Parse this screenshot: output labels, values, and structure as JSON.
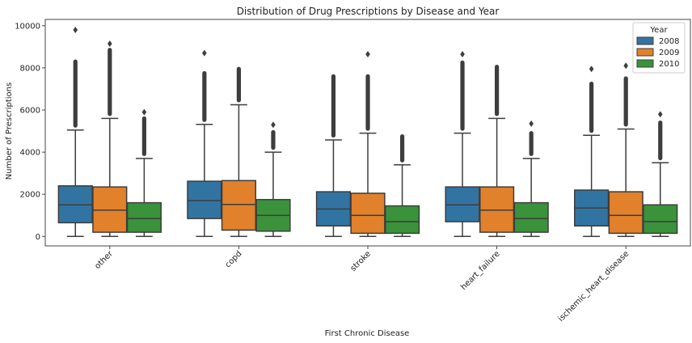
{
  "chart_data": {
    "type": "box",
    "title": "Distribution of Drug Prescriptions by Disease and Year",
    "xlabel": "First Chronic Disease",
    "ylabel": "Number of Prescriptions",
    "ylim": [
      -450,
      10300
    ],
    "yticks": [
      0,
      2000,
      4000,
      6000,
      8000,
      10000
    ],
    "ytick_labels": [
      "0",
      "2000",
      "4000",
      "6000",
      "8000",
      "10000"
    ],
    "categories": [
      "other",
      "copd",
      "stroke",
      "heart_failure",
      "ischemic_heart_disease"
    ],
    "legend": {
      "title": "Year",
      "position": "top-right"
    },
    "series": [
      {
        "name": "2008",
        "color": "#3274a1",
        "boxes": [
          {
            "min": 0,
            "q1": 650,
            "median": 1500,
            "q3": 2400,
            "max": 5050,
            "outlier_top": 8400,
            "outlier_max": 9800
          },
          {
            "min": 0,
            "q1": 850,
            "median": 1700,
            "q3": 2620,
            "max": 5320,
            "outlier_top": 7850,
            "outlier_max": 8700
          },
          {
            "min": 0,
            "q1": 500,
            "median": 1300,
            "q3": 2120,
            "max": 4580,
            "outlier_top": 7700,
            "outlier_max": 7700
          },
          {
            "min": 0,
            "q1": 700,
            "median": 1500,
            "q3": 2350,
            "max": 4900,
            "outlier_top": 8350,
            "outlier_max": 8650
          },
          {
            "min": 0,
            "q1": 500,
            "median": 1350,
            "q3": 2200,
            "max": 4800,
            "outlier_top": 7350,
            "outlier_max": 7950
          }
        ]
      },
      {
        "name": "2009",
        "color": "#e1812c",
        "boxes": [
          {
            "min": 0,
            "q1": 200,
            "median": 1250,
            "q3": 2350,
            "max": 5600,
            "outlier_top": 8950,
            "outlier_max": 9150
          },
          {
            "min": 0,
            "q1": 300,
            "median": 1520,
            "q3": 2650,
            "max": 6250,
            "outlier_top": 8050,
            "outlier_max": 8050
          },
          {
            "min": 0,
            "q1": 150,
            "median": 1000,
            "q3": 2050,
            "max": 4900,
            "outlier_top": 7700,
            "outlier_max": 8650
          },
          {
            "min": 0,
            "q1": 200,
            "median": 1250,
            "q3": 2350,
            "max": 5600,
            "outlier_top": 8150,
            "outlier_max": 8150
          },
          {
            "min": 0,
            "q1": 150,
            "median": 1000,
            "q3": 2120,
            "max": 5100,
            "outlier_top": 7600,
            "outlier_max": 8100
          }
        ]
      },
      {
        "name": "2010",
        "color": "#3a923a",
        "boxes": [
          {
            "min": 0,
            "q1": 200,
            "median": 850,
            "q3": 1600,
            "max": 3700,
            "outlier_top": 5700,
            "outlier_max": 5900
          },
          {
            "min": 0,
            "q1": 250,
            "median": 1000,
            "q3": 1750,
            "max": 4000,
            "outlier_top": 5050,
            "outlier_max": 5300
          },
          {
            "min": 0,
            "q1": 150,
            "median": 700,
            "q3": 1450,
            "max": 3400,
            "outlier_top": 4850,
            "outlier_max": 4850
          },
          {
            "min": 0,
            "q1": 200,
            "median": 850,
            "q3": 1600,
            "max": 3700,
            "outlier_top": 5000,
            "outlier_max": 5350
          },
          {
            "min": 0,
            "q1": 150,
            "median": 700,
            "q3": 1500,
            "max": 3500,
            "outlier_top": 5500,
            "outlier_max": 5800
          }
        ]
      }
    ]
  }
}
